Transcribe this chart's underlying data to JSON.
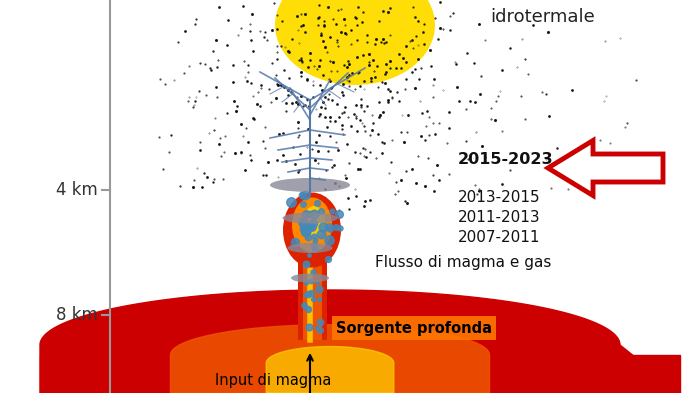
{
  "background_color": "#ffffff",
  "axis_line_color": "#999999",
  "ytick_labels": [
    "4 km",
    "8 km"
  ],
  "label_idrotermale": "idrotermale",
  "label_2015": "2015-2023",
  "label_2013": "2013-2015",
  "label_2011": "2011-2013",
  "label_2007": "2007-2011",
  "label_flusso": "Flusso di magma e gas",
  "label_sorgente": "Sorgente profonda",
  "label_input": "Input di magma",
  "arrow_color": "#cc0000",
  "sorgente_bg": "#ff7700",
  "magma_red": "#cc0000",
  "magma_red2": "#dd2200",
  "magma_orange": "#ee5500",
  "magma_orange2": "#ff8800",
  "magma_yellow": "#ffcc00",
  "blue_accent": "#4488bb",
  "dot_color": "#111111",
  "gray_sill": "#888899",
  "blue_vein": "#5577aa",
  "hydro_yellow": "#ffdd00"
}
